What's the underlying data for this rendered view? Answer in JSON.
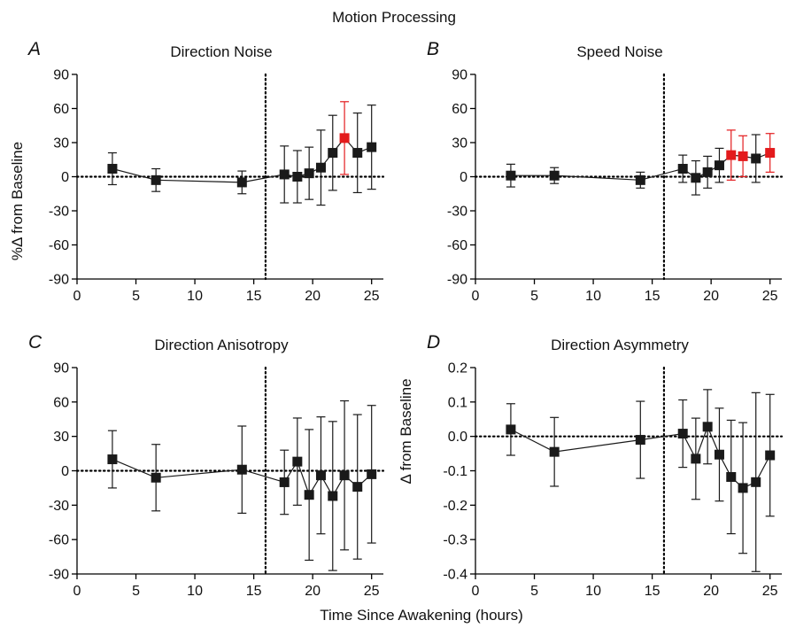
{
  "figure": {
    "title": "Motion Processing",
    "xlabel": "Time Since Awakening (hours)",
    "ylabel_top": "%Δ from Baseline",
    "ylabel_bottom": "Δ from Baseline"
  },
  "colors": {
    "marker": "#1a1a1a",
    "highlight": "#e31a1c",
    "axis": "#000000"
  },
  "chart_data": [
    {
      "panel": "A",
      "type": "scatter",
      "title": "Direction Noise",
      "xlim": [
        0,
        26
      ],
      "xticks": [
        0,
        5,
        10,
        15,
        20,
        25
      ],
      "ylim": [
        -90,
        90
      ],
      "yticks": [
        -90,
        -60,
        -30,
        0,
        30,
        60,
        90
      ],
      "ytick_labels": [
        "-90",
        "-60",
        "-30",
        "0",
        "30",
        "60",
        "90"
      ],
      "reference_y": 0,
      "reference_x": 16,
      "x": [
        3,
        6.7,
        14,
        17.6,
        18.7,
        19.7,
        20.7,
        21.7,
        22.7,
        23.8,
        25
      ],
      "y": [
        7,
        -3,
        -5,
        2,
        0,
        3,
        8,
        21,
        34,
        21,
        26
      ],
      "err": [
        14,
        10,
        10,
        25,
        23,
        23,
        33,
        33,
        32,
        35,
        37
      ],
      "highlight": [
        false,
        false,
        false,
        false,
        false,
        false,
        false,
        false,
        true,
        false,
        false
      ]
    },
    {
      "panel": "B",
      "type": "scatter",
      "title": "Speed Noise",
      "xlim": [
        0,
        26
      ],
      "xticks": [
        0,
        5,
        10,
        15,
        20,
        25
      ],
      "ylim": [
        -90,
        90
      ],
      "yticks": [
        -90,
        -60,
        -30,
        0,
        30,
        60,
        90
      ],
      "ytick_labels": [
        "-90",
        "-60",
        "-30",
        "0",
        "30",
        "60",
        "90"
      ],
      "reference_y": 0,
      "reference_x": 16,
      "x": [
        3,
        6.7,
        14,
        17.6,
        18.7,
        19.7,
        20.7,
        21.7,
        22.7,
        23.8,
        25
      ],
      "y": [
        1,
        1,
        -3,
        7,
        -1,
        4,
        10,
        19,
        18,
        16,
        21
      ],
      "err": [
        10,
        7,
        7,
        12,
        15,
        14,
        15,
        22,
        18,
        21,
        17
      ],
      "highlight": [
        false,
        false,
        false,
        false,
        false,
        false,
        false,
        true,
        true,
        false,
        true
      ]
    },
    {
      "panel": "C",
      "type": "scatter",
      "title": "Direction Anisotropy",
      "xlim": [
        0,
        26
      ],
      "xticks": [
        0,
        5,
        10,
        15,
        20,
        25
      ],
      "ylim": [
        -90,
        90
      ],
      "yticks": [
        -90,
        -60,
        -30,
        0,
        30,
        60,
        90
      ],
      "ytick_labels": [
        "-90",
        "-60",
        "-30",
        "0",
        "30",
        "60",
        "90"
      ],
      "reference_y": 0,
      "reference_x": 16,
      "x": [
        3,
        6.7,
        14,
        17.6,
        18.7,
        19.7,
        20.7,
        21.7,
        22.7,
        23.8,
        25
      ],
      "y": [
        10,
        -6,
        1,
        -10,
        8,
        -21,
        -4,
        -22,
        -4,
        -14,
        -3
      ],
      "err": [
        25,
        29,
        38,
        28,
        38,
        57,
        51,
        65,
        65,
        63,
        60
      ],
      "highlight": [
        false,
        false,
        false,
        false,
        false,
        false,
        false,
        false,
        false,
        false,
        false
      ]
    },
    {
      "panel": "D",
      "type": "scatter",
      "title": "Direction Asymmetry",
      "xlim": [
        0,
        26
      ],
      "xticks": [
        0,
        5,
        10,
        15,
        20,
        25
      ],
      "ylim": [
        -0.4,
        0.2
      ],
      "yticks": [
        -0.4,
        -0.3,
        -0.2,
        -0.1,
        0.0,
        0.1,
        0.2
      ],
      "ytick_labels": [
        "-0.4",
        "-0.3",
        "-0.2",
        "-0.1",
        "0.0",
        "0.1",
        "0.2"
      ],
      "reference_y": 0,
      "reference_x": 16,
      "x": [
        3,
        6.7,
        14,
        17.6,
        18.7,
        19.7,
        20.7,
        21.7,
        22.7,
        23.8,
        25
      ],
      "y": [
        0.02,
        -0.045,
        -0.01,
        0.008,
        -0.065,
        0.028,
        -0.053,
        -0.118,
        -0.15,
        -0.133,
        -0.055
      ],
      "err": [
        0.075,
        0.1,
        0.112,
        0.098,
        0.118,
        0.108,
        0.135,
        0.165,
        0.19,
        0.26,
        0.177
      ],
      "highlight": [
        false,
        false,
        false,
        false,
        false,
        false,
        false,
        false,
        false,
        false,
        false
      ]
    }
  ]
}
